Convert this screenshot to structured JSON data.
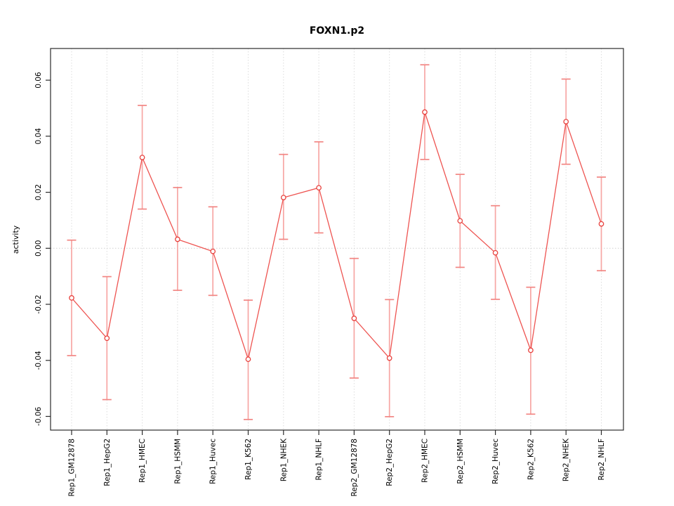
{
  "title": "FOXN1.p2",
  "chart_data": {
    "type": "line",
    "title": "FOXN1.p2",
    "xlabel": "",
    "ylabel": "activity",
    "legend": "none",
    "grid": "dotted vertical line at every category; dotted horizontal line at y=0",
    "point_style": "open circles with symmetric error bars",
    "categories": [
      "Rep1_GM12878",
      "Rep1_HepG2",
      "Rep1_HMEC",
      "Rep1_HSMM",
      "Rep1_Huvec",
      "Rep1_K562",
      "Rep1_NHEK",
      "Rep1_NHLF",
      "Rep2_GM12878",
      "Rep2_HepG2",
      "Rep2_HMEC",
      "Rep2_HSMM",
      "Rep2_Huvec",
      "Rep2_K562",
      "Rep2_NHEK",
      "Rep2_NHLF"
    ],
    "series": [
      {
        "name": "activity",
        "values": [
          -0.0177,
          -0.0321,
          0.0324,
          0.0032,
          -0.0011,
          -0.0396,
          0.0181,
          0.0216,
          -0.025,
          -0.0392,
          0.0486,
          0.0098,
          -0.0016,
          -0.0364,
          0.0452,
          0.0087
        ]
      }
    ],
    "error_bars": {
      "lower": [
        -0.0383,
        -0.054,
        0.014,
        -0.015,
        -0.0168,
        -0.0611,
        0.0032,
        0.0055,
        -0.0463,
        -0.0601,
        0.0317,
        -0.0068,
        -0.0182,
        -0.0592,
        0.03,
        -0.008
      ],
      "upper": [
        0.0029,
        -0.0101,
        0.051,
        0.0217,
        0.0148,
        -0.0185,
        0.0335,
        0.038,
        -0.0036,
        -0.0183,
        0.0655,
        0.0264,
        0.0152,
        -0.0139,
        0.0604,
        0.0254
      ]
    },
    "y_ticks": [
      -0.06,
      -0.04,
      -0.02,
      0,
      0.02,
      0.04,
      0.06
    ],
    "y_tick_labels": [
      "-0.06",
      "-0.04",
      "-0.02",
      "0.00",
      "0.02",
      "0.04",
      "0.06"
    ],
    "ylim": [
      -0.0649,
      0.0713
    ],
    "colors": {
      "line": "#ee5451",
      "point": "#e8413d",
      "error_bar": "#f7a6a4",
      "error_cap": "#f28683",
      "grid": "#dcdcdc",
      "zero_line": "#d0d0d0",
      "frame": "#2b2b2b",
      "text": "#000000",
      "background": "#ffffff"
    }
  }
}
